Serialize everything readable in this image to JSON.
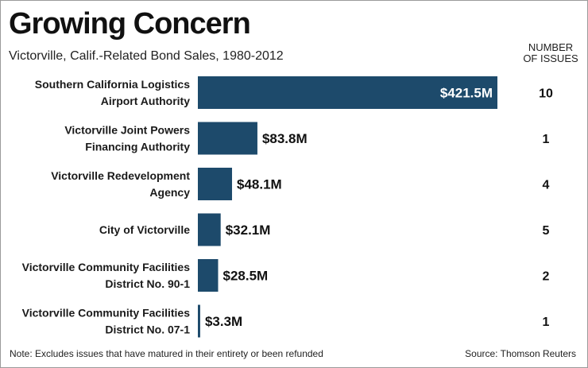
{
  "chart_data": {
    "type": "bar",
    "orientation": "horizontal",
    "title": "Growing Concern",
    "subtitle": "Victorville, Calif.-Related Bond Sales, 1980-2012",
    "categories": [
      "Southern California Logistics\nAirport Authority",
      "Victorville Joint Powers\nFinancing Authority",
      "Victorville Redevelopment\nAgency",
      "City of Victorville",
      "Victorville Community Facilities\nDistrict No. 90-1",
      "Victorville Community Facilities\nDistrict No. 07-1"
    ],
    "values": [
      421.5,
      83.8,
      48.1,
      32.1,
      28.5,
      3.3
    ],
    "value_labels": [
      "$421.5M",
      "$83.8M",
      "$48.1M",
      "$32.1M",
      "$28.5M",
      "$3.3M"
    ],
    "number_of_issues_header": "NUMBER\nOF ISSUES",
    "number_of_issues": [
      "10",
      "1",
      "4",
      "5",
      "2",
      "1"
    ],
    "bar_color": "#1d4a6b",
    "grid": false
  },
  "footer": {
    "note": "Note: Excludes issues that have matured in their entirety or been refunded",
    "source": "Source: Thomson Reuters"
  }
}
